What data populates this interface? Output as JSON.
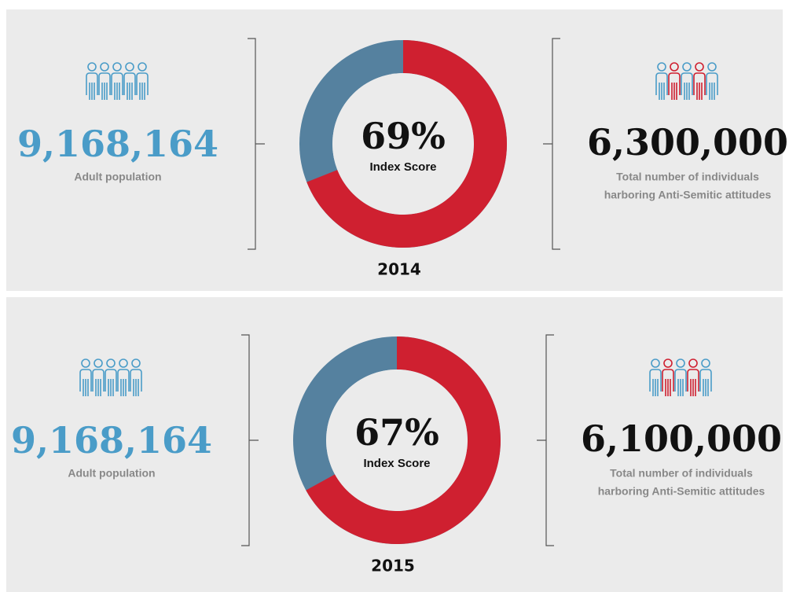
{
  "chart_data": [
    {
      "type": "donut",
      "title": "2014",
      "values": [
        69
      ],
      "value_labels": [
        "69%"
      ],
      "subtitle": "Index Score",
      "color": "#cf2030",
      "track_color": "#55819f",
      "population": "9,168,164",
      "population_label": "Adult population",
      "total": "6,300,000",
      "total_label": [
        "Total number of individuals",
        "harboring Anti-Semitic attitudes"
      ]
    },
    {
      "type": "donut",
      "title": "2015",
      "values": [
        67
      ],
      "value_labels": [
        "67%"
      ],
      "subtitle": "Index Score",
      "color": "#cf2030",
      "track_color": "#55819f",
      "population": "9,168,164",
      "population_label": "Adult population",
      "total": "6,100,000",
      "total_label": [
        "Total number of individuals",
        "harboring Anti-Semitic attitudes"
      ]
    }
  ]
}
